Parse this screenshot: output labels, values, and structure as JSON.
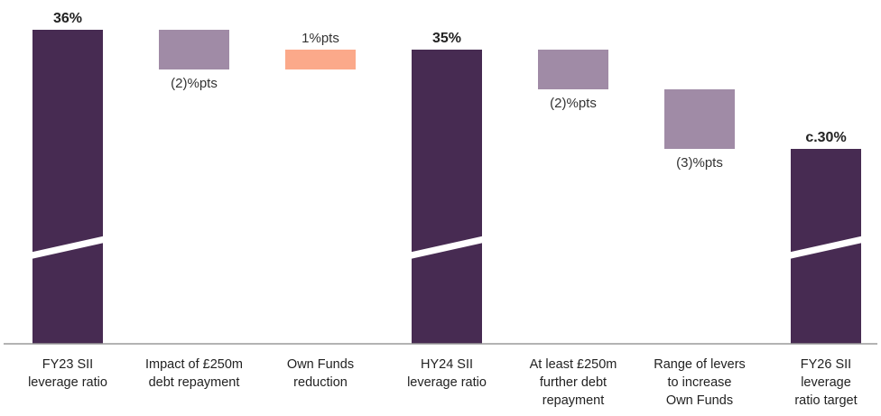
{
  "chart_data": {
    "type": "bar",
    "subtype": "waterfall",
    "title": "",
    "xlabel": "",
    "ylabel": "",
    "ylim": [
      25,
      36
    ],
    "axis_break": true,
    "grid": false,
    "categories": [
      [
        "FY23 SII",
        "leverage ratio"
      ],
      [
        "Impact of £250m",
        "debt repayment"
      ],
      [
        "Own Funds",
        "reduction"
      ],
      [
        "HY24 SII",
        "leverage ratio"
      ],
      [
        "At least £250m",
        "further debt",
        "repayment"
      ],
      [
        "Range of levers",
        "to increase",
        "Own Funds"
      ],
      [
        "FY26 SII",
        "leverage",
        "ratio target"
      ]
    ],
    "bars": [
      {
        "kind": "total",
        "start": 0,
        "end": 36,
        "label": "36%"
      },
      {
        "kind": "delta",
        "start": 36,
        "end": 34,
        "label": "(2)%pts"
      },
      {
        "kind": "delta",
        "start": 34,
        "end": 35,
        "label": "1%pts"
      },
      {
        "kind": "total",
        "start": 0,
        "end": 35,
        "label": "35%"
      },
      {
        "kind": "delta",
        "start": 35,
        "end": 33,
        "label": "(2)%pts"
      },
      {
        "kind": "delta",
        "start": 33,
        "end": 30,
        "label": "(3)%pts"
      },
      {
        "kind": "total",
        "start": 0,
        "end": 30,
        "label": "c.30%"
      }
    ],
    "colors": {
      "total": "#472b52",
      "decrease": "#a08ba6",
      "increase": "#fba98a",
      "axis": "#9a9a9a"
    }
  }
}
